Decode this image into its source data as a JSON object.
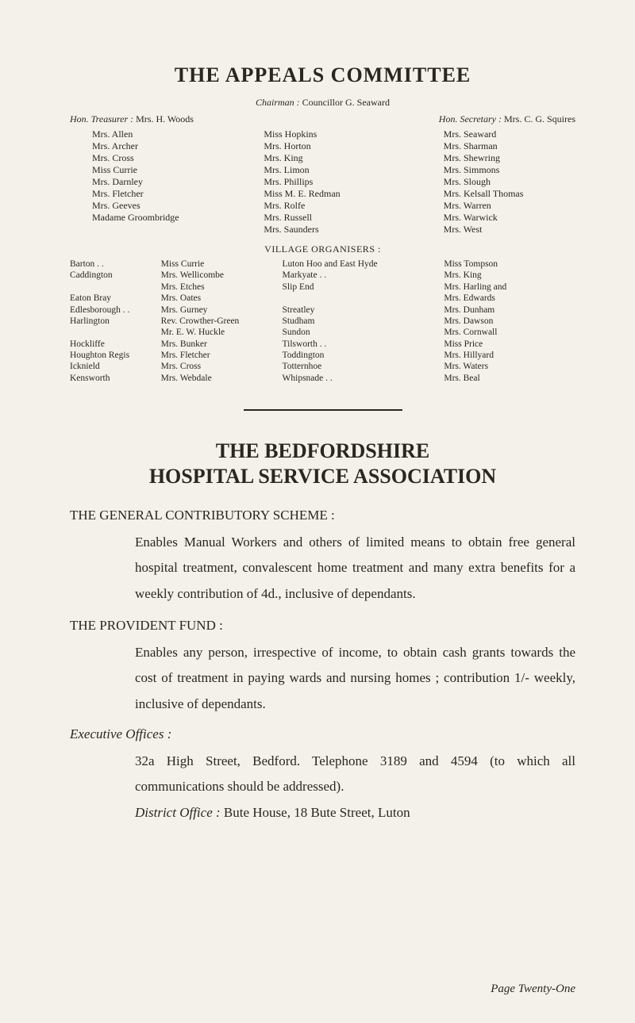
{
  "title_appeals": "THE APPEALS COMMITTEE",
  "chairman_label": "Chairman :",
  "chairman_name": "Councillor G. Seaward",
  "hon_treasurer_label": "Hon. Treasurer :",
  "hon_treasurer_name": "Mrs. H. Woods",
  "hon_secretary_label": "Hon. Secretary :",
  "hon_secretary_name": "Mrs. C. G. Squires",
  "members_col1": [
    "Mrs. Allen",
    "Mrs. Archer",
    "Mrs. Cross",
    "Miss Currie",
    "Mrs. Darnley",
    "Mrs. Fletcher",
    "Mrs. Geeves",
    "Madame Groombridge"
  ],
  "members_col2": [
    "Miss Hopkins",
    "Mrs. Horton",
    "Mrs. King",
    "Mrs. Limon",
    "Mrs. Phillips",
    "Miss M. E. Redman",
    "Mrs. Rolfe",
    "Mrs. Russell",
    "Mrs. Saunders"
  ],
  "members_col3": [
    "Mrs. Seaward",
    "Mrs. Sharman",
    "Mrs. Shewring",
    "Mrs. Simmons",
    "Mrs. Slough",
    "Mrs. Kelsall Thomas",
    "Mrs. Warren",
    "Mrs. Warwick",
    "Mrs. West"
  ],
  "village_heading": "VILLAGE ORGANISERS :",
  "vo_col1": [
    "Barton . .",
    "Caddington",
    "",
    "Eaton Bray",
    "Edlesborough . .",
    "Harlington",
    "",
    "Hockliffe",
    "Houghton Regis",
    "Icknield",
    "Kensworth"
  ],
  "vo_col2": [
    "Miss Currie",
    "Mrs. Wellicombe",
    "Mrs. Etches",
    "Mrs. Oates",
    "Mrs. Gurney",
    "Rev. Crowther-Green",
    "Mr. E. W. Huckle",
    "Mrs. Bunker",
    "Mrs. Fletcher",
    "Mrs. Cross",
    "Mrs. Webdale"
  ],
  "vo_col3": [
    "Luton Hoo and East Hyde",
    "Markyate . .",
    "Slip End",
    "",
    "Streatley",
    "Studham",
    "Sundon",
    "Tilsworth . .",
    "Toddington",
    "Totternhoe",
    "Whipsnade . ."
  ],
  "vo_col4": [
    "Miss Tompson",
    "Mrs. King",
    "Mrs. Harling and",
    "Mrs. Edwards",
    "Mrs. Dunham",
    "Mrs. Dawson",
    "Mrs. Cornwall",
    "Miss Price",
    "Mrs. Hillyard",
    "Mrs. Waters",
    "Mrs. Beal"
  ],
  "title_beds_1": "THE BEDFORDSHIRE",
  "title_beds_2": "HOSPITAL SERVICE ASSOCIATION",
  "scheme_label": "THE GENERAL CONTRIBUTORY SCHEME :",
  "scheme_body": "Enables Manual Workers and others of limited means to obtain free general hospital treatment, convalescent home treatment and many extra benefits for a weekly contribution of 4d., inclusive of dependants.",
  "provident_label": "THE PROVIDENT FUND :",
  "provident_body": "Enables any person, irrespective of income, to obtain cash grants towards the cost of treatment in paying wards and nursing homes ; contribution 1/- weekly, inclusive of dependants.",
  "exec_label": "Executive Offices :",
  "exec_body": "32a High Street, Bedford.   Telephone 3189 and 4594 (to which all communications should be addressed).",
  "district_label": "District Office :",
  "district_body": "Bute House, 18 Bute Street, Luton",
  "page_number": "Page Twenty-One",
  "colors": {
    "bg": "#f4f1ea",
    "text": "#2a2620",
    "rule": "#2a2620"
  },
  "fontsizes": {
    "h1": 26,
    "h2": 26,
    "body": 17,
    "small": 12,
    "tiny": 11.5,
    "pagenum": 15
  }
}
